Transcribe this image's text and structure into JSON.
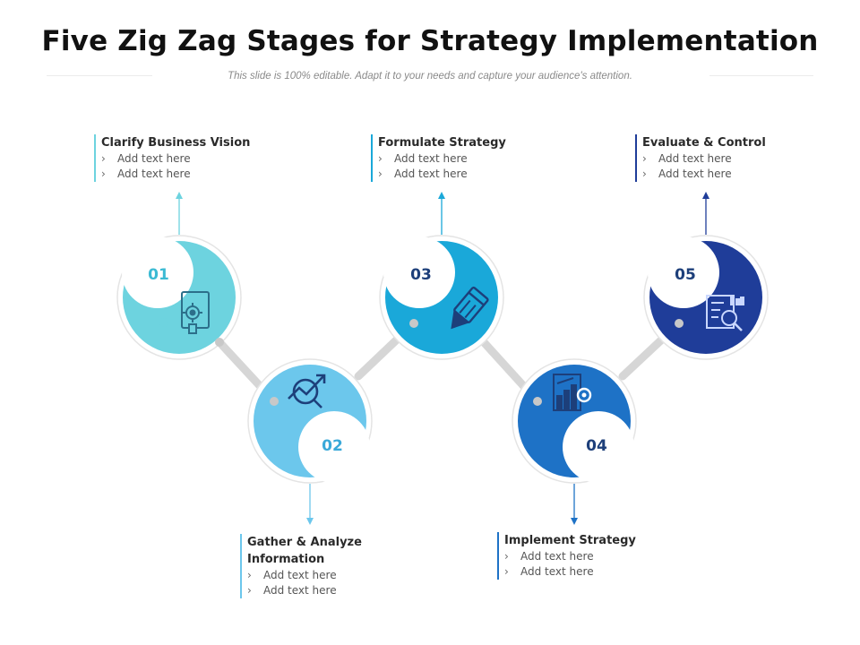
{
  "header": {
    "title": "Five Zig Zag Stages for Strategy Implementation",
    "subtitle": "This slide is 100% editable. Adapt it to your needs and capture your audience's attention."
  },
  "stages": [
    {
      "number": "01",
      "title": "Clarify Business Vision",
      "bullets": [
        "Add text here",
        "Add text here"
      ],
      "color": "#6dd3df",
      "icon": "business-vision-document-gear-icon",
      "label_position": "top"
    },
    {
      "number": "02",
      "title": "Gather & Analyze Information",
      "bullets": [
        "Add text here",
        "Add text here"
      ],
      "color": "#6cc7ec",
      "icon": "analyze-trend-magnifier-icon",
      "label_position": "bottom"
    },
    {
      "number": "03",
      "title": "Formulate Strategy",
      "bullets": [
        "Add text here",
        "Add text here"
      ],
      "color": "#1aa8d9",
      "icon": "pencil-icon",
      "label_position": "top"
    },
    {
      "number": "04",
      "title": "Implement Strategy",
      "bullets": [
        "Add text here",
        "Add text here"
      ],
      "color": "#1e72c6",
      "icon": "chart-gear-icon",
      "label_position": "bottom"
    },
    {
      "number": "05",
      "title": "Evaluate & Control",
      "bullets": [
        "Add text here",
        "Add text here"
      ],
      "color": "#1f3d99",
      "icon": "report-magnifier-icon",
      "label_position": "top"
    }
  ],
  "colors": {
    "number_dark": "#1d3f7a",
    "connector": "#d4d4d4",
    "ring": "#e3e3e3"
  }
}
